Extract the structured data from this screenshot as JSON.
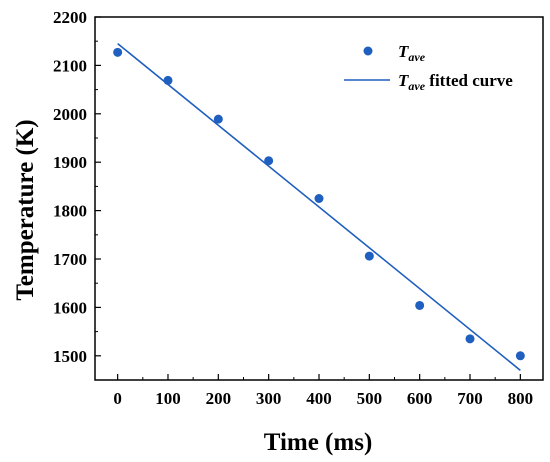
{
  "chart_data": {
    "type": "scatter",
    "title": "",
    "xlabel": "Time (ms)",
    "ylabel": "Temperature (K)",
    "xlim": [
      -45,
      845
    ],
    "ylim": [
      1450,
      2200
    ],
    "x_ticks": [
      0,
      100,
      200,
      300,
      400,
      500,
      600,
      700,
      800
    ],
    "y_ticks": [
      1500,
      1600,
      1700,
      1800,
      1900,
      2000,
      2100,
      2200
    ],
    "grid": false,
    "legend_position": "top-right",
    "series": [
      {
        "name_main": "T",
        "name_sub": "ave",
        "kind": "scatter",
        "color": "#1f5fbf",
        "x": [
          0,
          100,
          200,
          300,
          400,
          500,
          600,
          700,
          800
        ],
        "y": [
          2127,
          2069,
          1989,
          1903,
          1825,
          1706,
          1604,
          1535,
          1500
        ]
      },
      {
        "name_main": "T",
        "name_sub": "ave",
        "name_suffix": " fitted curve",
        "kind": "line",
        "color": "#1f5fbf",
        "x": [
          0,
          800
        ],
        "y": [
          2145,
          1470
        ]
      }
    ]
  }
}
